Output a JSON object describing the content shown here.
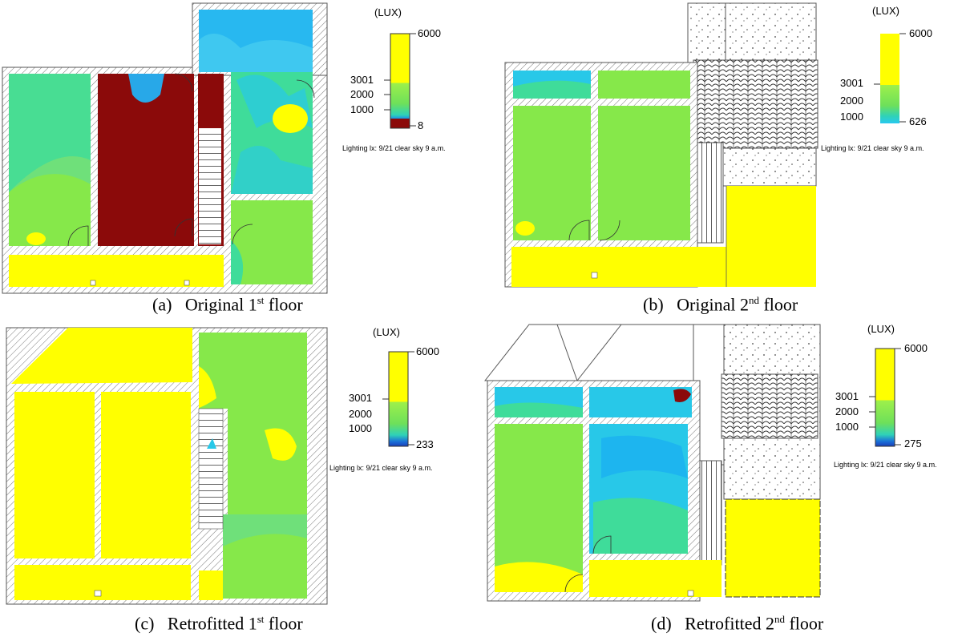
{
  "panels": [
    {
      "id": "a",
      "caption_letter": "(a)",
      "caption_text": "Original 1",
      "caption_sup": "st",
      "caption_tail": " floor",
      "legend": {
        "title": "(LUX)",
        "max": "6000",
        "t3001": "3001",
        "t2000": "2000",
        "t1000": "1000",
        "min": "8"
      },
      "note": "Lighting lx: 9/21 clear sky 9 a.m."
    },
    {
      "id": "b",
      "caption_letter": "(b)",
      "caption_text": "Original 2",
      "caption_sup": "nd",
      "caption_tail": " floor",
      "legend": {
        "title": "(LUX)",
        "max": "6000",
        "t3001": "3001",
        "t2000": "2000",
        "t1000": "1000",
        "min": "626"
      },
      "note": "Lighting lx: 9/21 clear sky 9 a.m."
    },
    {
      "id": "c",
      "caption_letter": "(c)",
      "caption_text": "Retrofitted 1",
      "caption_sup": "st",
      "caption_tail": " floor",
      "legend": {
        "title": "(LUX)",
        "max": "6000",
        "t3001": "3001",
        "t2000": "2000",
        "t1000": "1000",
        "min": "233"
      },
      "note": "Lighting lx: 9/21 clear sky 9 a.m."
    },
    {
      "id": "d",
      "caption_letter": "(d)",
      "caption_text": "Retrofitted 2",
      "caption_sup": "nd",
      "caption_tail": " floor",
      "legend": {
        "title": "(LUX)",
        "max": "6000",
        "t3001": "3001",
        "t2000": "2000",
        "t1000": "1000",
        "min": "275"
      },
      "note": "Lighting lx: 9/21 clear sky 9 a.m."
    }
  ],
  "colors": {
    "yellow": "#ffff00",
    "green": "#86e84a",
    "teal": "#3fdc9a",
    "cyan": "#28c8e8",
    "blue": "#1a6fd8",
    "darkred": "#8b0a0a",
    "wall": "#ffffff",
    "outline": "#555555"
  }
}
